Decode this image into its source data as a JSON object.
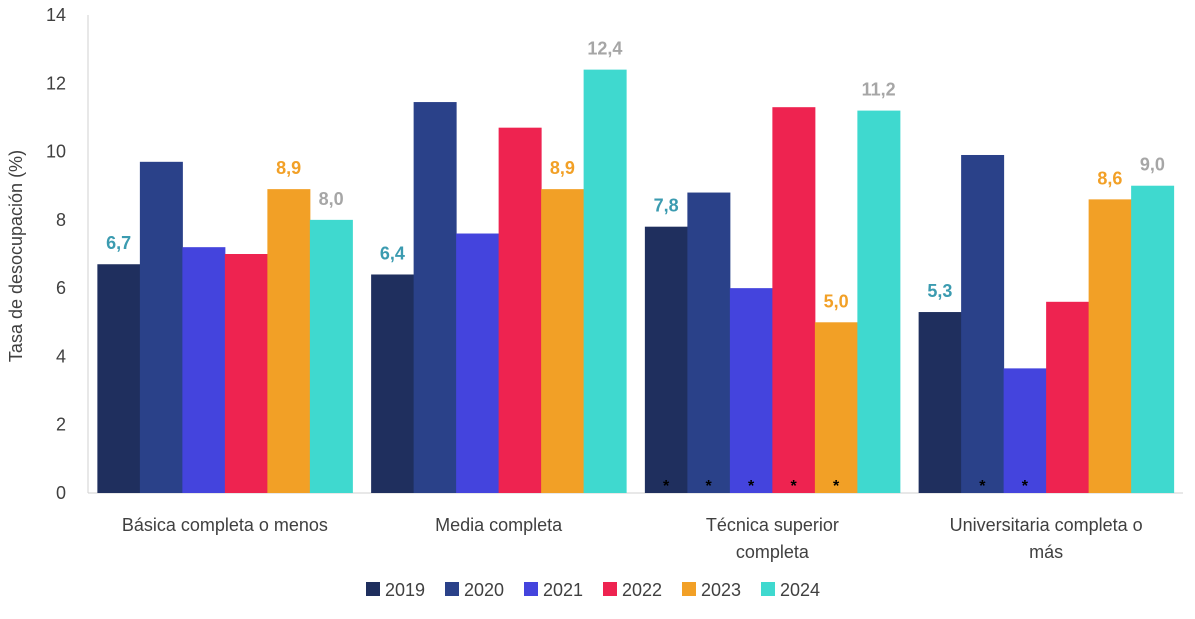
{
  "chart_data": {
    "type": "bar",
    "title": "",
    "ylabel": "Tasa de desocupación (%)",
    "xlabel": "",
    "ylim": [
      0,
      14
    ],
    "yticks": [
      "0",
      "2",
      "4",
      "6",
      "8",
      "10",
      "12",
      "14"
    ],
    "legend_position": "bottom",
    "grid": false,
    "categories": [
      [
        "Básica completa o menos"
      ],
      [
        "Media completa"
      ],
      [
        "Técnica superior",
        "completa"
      ],
      [
        "Universitaria completa o",
        "más"
      ]
    ],
    "series": [
      {
        "name": "2019",
        "color": "#1F2F5E",
        "values": [
          6.7,
          6.4,
          7.8,
          5.3
        ],
        "labels": [
          "6,7",
          "6,4",
          "7,8",
          "5,3"
        ],
        "label_color": "#3B9BB0",
        "stars": [
          false,
          false,
          true,
          false
        ]
      },
      {
        "name": "2020",
        "color": "#2A4189",
        "values": [
          9.7,
          11.45,
          8.8,
          9.9
        ],
        "labels": [
          "",
          "",
          "",
          ""
        ],
        "label_color": "#2A4189",
        "stars": [
          false,
          false,
          true,
          true
        ]
      },
      {
        "name": "2021",
        "color": "#4444DD",
        "values": [
          7.2,
          7.6,
          6.0,
          3.65
        ],
        "labels": [
          "",
          "",
          "",
          ""
        ],
        "label_color": "#4444DD",
        "stars": [
          false,
          false,
          true,
          true
        ]
      },
      {
        "name": "2022",
        "color": "#EE2350",
        "values": [
          7.0,
          10.7,
          11.3,
          5.6
        ],
        "labels": [
          "",
          "",
          "",
          ""
        ],
        "label_color": "#EE2350",
        "stars": [
          false,
          false,
          true,
          false
        ]
      },
      {
        "name": "2023",
        "color": "#F2A026",
        "values": [
          8.9,
          8.9,
          5.0,
          8.6
        ],
        "labels": [
          "8,9",
          "8,9",
          "5,0",
          "8,6"
        ],
        "label_color": "#F2A026",
        "stars": [
          false,
          false,
          true,
          false
        ]
      },
      {
        "name": "2024",
        "color": "#3FD9CF",
        "values": [
          8.0,
          12.4,
          11.2,
          9.0
        ],
        "labels": [
          "8,0",
          "12,4",
          "11,2",
          "9,0"
        ],
        "label_color": "#A6A6A6",
        "stars": [
          false,
          false,
          false,
          false
        ]
      }
    ],
    "star_symbol": "*"
  }
}
